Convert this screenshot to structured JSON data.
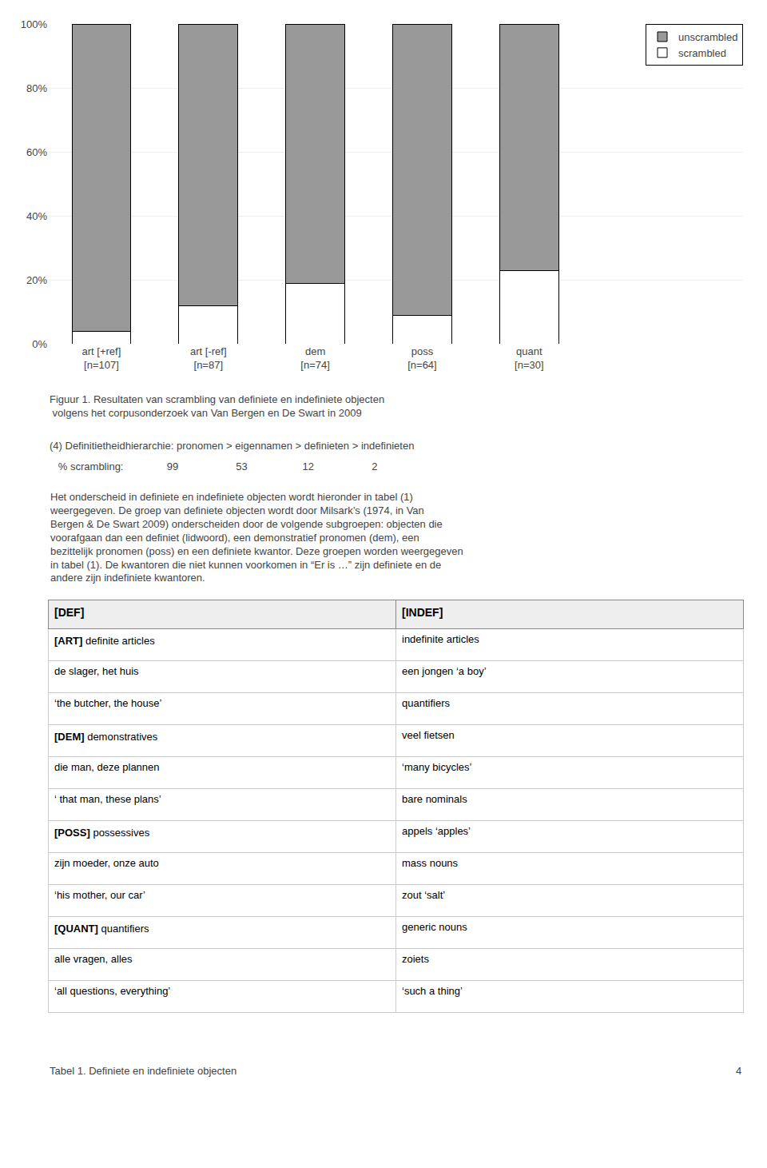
{
  "chart_data": [
    {
      "type": "bar",
      "stacked": true,
      "categories": [
        "art [+ref]\n[n=107]",
        "art [-ref]\n[n=87]",
        "dem\n[n=74]",
        "poss\n[n=64]",
        "quant\n[n=30]"
      ],
      "series": [
        {
          "name": "scrambled",
          "color": "#ffffff",
          "values": [
            4,
            12,
            19,
            9,
            23
          ]
        },
        {
          "name": "unscrambled",
          "color": "#999999",
          "values": [
            96,
            88,
            81,
            91,
            77
          ]
        }
      ],
      "ylim": [
        0,
        100
      ],
      "yticks": [
        {
          "value": 0,
          "label": "0%"
        },
        {
          "value": 20,
          "label": "20%"
        },
        {
          "value": 40,
          "label": "40%"
        },
        {
          "value": 60,
          "label": "60%"
        },
        {
          "value": 80,
          "label": "80%"
        },
        {
          "value": 100,
          "label": "100%"
        }
      ],
      "grid": true,
      "legend": "upper right",
      "annotations": [
        "Figuur 1. Resultaten van scrambling van definiete en indefiniete objecten\n volgens het corpusonderzoek van Van Bergen en De Swart in 2009",
        "(4) Definitietheidhierarchie: pronomen > eigennamen > definieten > indefinieten",
        "   % scrambling:               99                    53                   12                    2",
        "Het onderscheid in definiete en indefiniete objecten wordt hieronder in tabel (1)\nweergegeven. De groep van definiete objecten wordt door Milsark’s (1974, in Van\nBergen & De Swart 2009) onderscheiden door de volgende subgroepen: objecten die\nvoorafgaan dan een definiet (lidwoord), een demonstratief pronomen (dem), een\nbezittelijk pronomen (poss) en een definiete kwantor. Deze groepen worden weergegeven\nin tabel (1). De kwantoren die niet kunnen voorkomen in “Er is …” zijn definiete en de\nandere zijn indefiniete kwantoren."
      ]
    },
    {
      "type": "table",
      "header": [
        "[DEF]",
        "[INDEF]"
      ],
      "cells": [
        [
          "[ART] definite articles",
          "de slager, het huis",
          "‘the butcher, the house’",
          "[DEM] demonstratives",
          "die man, deze plannen",
          "‘ that man, these plans’",
          "[POSS] possessives",
          "zijn moeder, onze auto",
          "‘his mother, our car’",
          "[QUANT] quantifiers",
          "alle vragen, alles",
          "‘all questions, everything’"
        ],
        [
          "indefinite articles",
          "een jongen ‘a boy’",
          "quantifiers",
          "veel fietsen",
          "‘many bicycles’",
          "bare nominals",
          "appels ‘apples’",
          "mass nouns",
          "zout ‘salt’",
          "generic nouns",
          "zoiets",
          "‘such a thing’"
        ]
      ],
      "annotations": [
        "Tabel 1. Definiete en indefiniete objecten",
        "4"
      ]
    }
  ]
}
